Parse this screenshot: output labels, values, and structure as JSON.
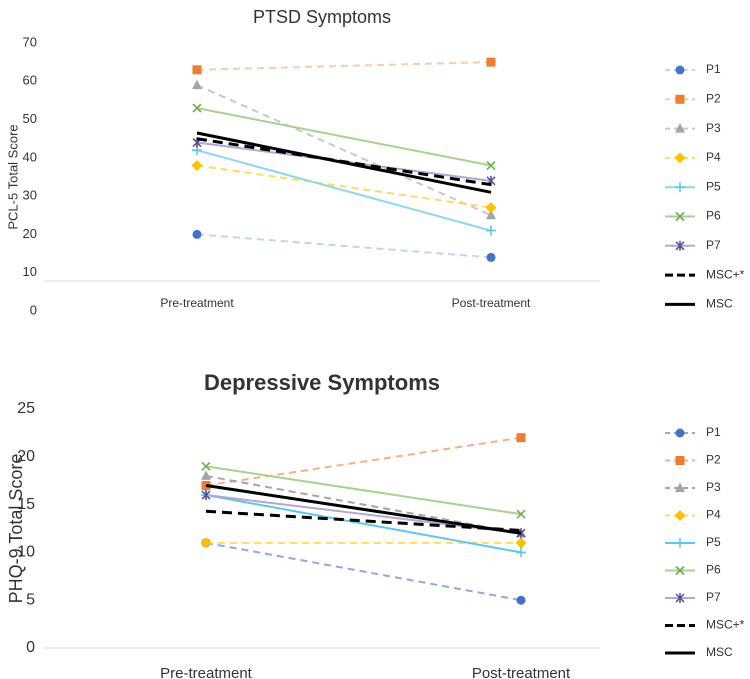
{
  "chart_data": [
    {
      "type": "line",
      "title": "PTSD Symptoms",
      "ylabel": "PCL-5 Total Score",
      "xlabel": "",
      "categories": [
        "Pre-treatment",
        "Post-treatment"
      ],
      "ylim": [
        0,
        70
      ],
      "yticks": [
        0,
        10,
        20,
        30,
        40,
        50,
        60,
        70
      ],
      "grid": false,
      "legend_position": "right",
      "series": [
        {
          "name": "P1",
          "values": [
            20,
            14
          ],
          "color": "#4472C4",
          "dash": true,
          "marker": "circle",
          "stroke": "#BDD7EE"
        },
        {
          "name": "P2",
          "values": [
            63,
            65
          ],
          "color": "#ED7D31",
          "dash": true,
          "marker": "square",
          "stroke": "#F8CBAD"
        },
        {
          "name": "P3",
          "values": [
            59,
            25
          ],
          "color": "#A5A5A5",
          "dash": true,
          "marker": "triangle",
          "stroke": "#C9C9C9"
        },
        {
          "name": "P4",
          "values": [
            38,
            27
          ],
          "color": "#FFC000",
          "dash": true,
          "marker": "diamond",
          "stroke": "#FFD966"
        },
        {
          "name": "P5",
          "values": [
            42,
            21
          ],
          "color": "#5BC8E8",
          "dash": false,
          "marker": "plus",
          "stroke": "#8FD7EC"
        },
        {
          "name": "P6",
          "values": [
            53,
            38
          ],
          "color": "#70AD47",
          "dash": false,
          "marker": "x",
          "stroke": "#A9D18E"
        },
        {
          "name": "P7",
          "values": [
            44,
            34
          ],
          "color": "#5B4A9B",
          "dash": false,
          "marker": "star",
          "stroke": "#B4A7D6"
        },
        {
          "name": "MSC+*",
          "values": [
            45,
            33
          ],
          "color": "#000000",
          "dash": true,
          "marker": "none",
          "stroke": "#000000"
        },
        {
          "name": "MSC",
          "values": [
            46.5,
            31
          ],
          "color": "#000000",
          "dash": false,
          "marker": "none",
          "stroke": "#000000"
        }
      ]
    },
    {
      "type": "line",
      "title": "Depressive Symptoms",
      "ylabel": "PHQ-9 Total Score",
      "xlabel": "",
      "categories": [
        "Pre-treatment",
        "Post-treatment"
      ],
      "ylim": [
        0,
        25
      ],
      "yticks": [
        0,
        5,
        10,
        15,
        20,
        25
      ],
      "grid": false,
      "legend_position": "right",
      "series": [
        {
          "name": "P1",
          "values": [
            11,
            5
          ],
          "color": "#4472C4",
          "dash": true,
          "marker": "circle",
          "stroke": "#8FAADC"
        },
        {
          "name": "P2",
          "values": [
            17,
            22
          ],
          "color": "#ED7D31",
          "dash": true,
          "marker": "square",
          "stroke": "#F4B183"
        },
        {
          "name": "P3",
          "values": [
            18,
            12
          ],
          "color": "#A5A5A5",
          "dash": true,
          "marker": "triangle",
          "stroke": "#A5A5A5"
        },
        {
          "name": "P4",
          "values": [
            11,
            11
          ],
          "color": "#FFC000",
          "dash": true,
          "marker": "diamond",
          "stroke": "#FFD966"
        },
        {
          "name": "P5",
          "values": [
            16,
            10
          ],
          "color": "#5BC8E8",
          "dash": false,
          "marker": "plus",
          "stroke": "#5BC8E8"
        },
        {
          "name": "P6",
          "values": [
            19,
            14
          ],
          "color": "#70AD47",
          "dash": false,
          "marker": "x",
          "stroke": "#A9D18E"
        },
        {
          "name": "P7",
          "values": [
            16,
            12
          ],
          "color": "#5B4A9B",
          "dash": false,
          "marker": "star",
          "stroke": "#B4A7D6"
        },
        {
          "name": "MSC+*",
          "values": [
            14.3,
            12.3
          ],
          "color": "#000000",
          "dash": true,
          "marker": "none",
          "stroke": "#000000"
        },
        {
          "name": "MSC",
          "values": [
            17,
            12
          ],
          "color": "#000000",
          "dash": false,
          "marker": "none",
          "stroke": "#000000"
        }
      ]
    }
  ]
}
